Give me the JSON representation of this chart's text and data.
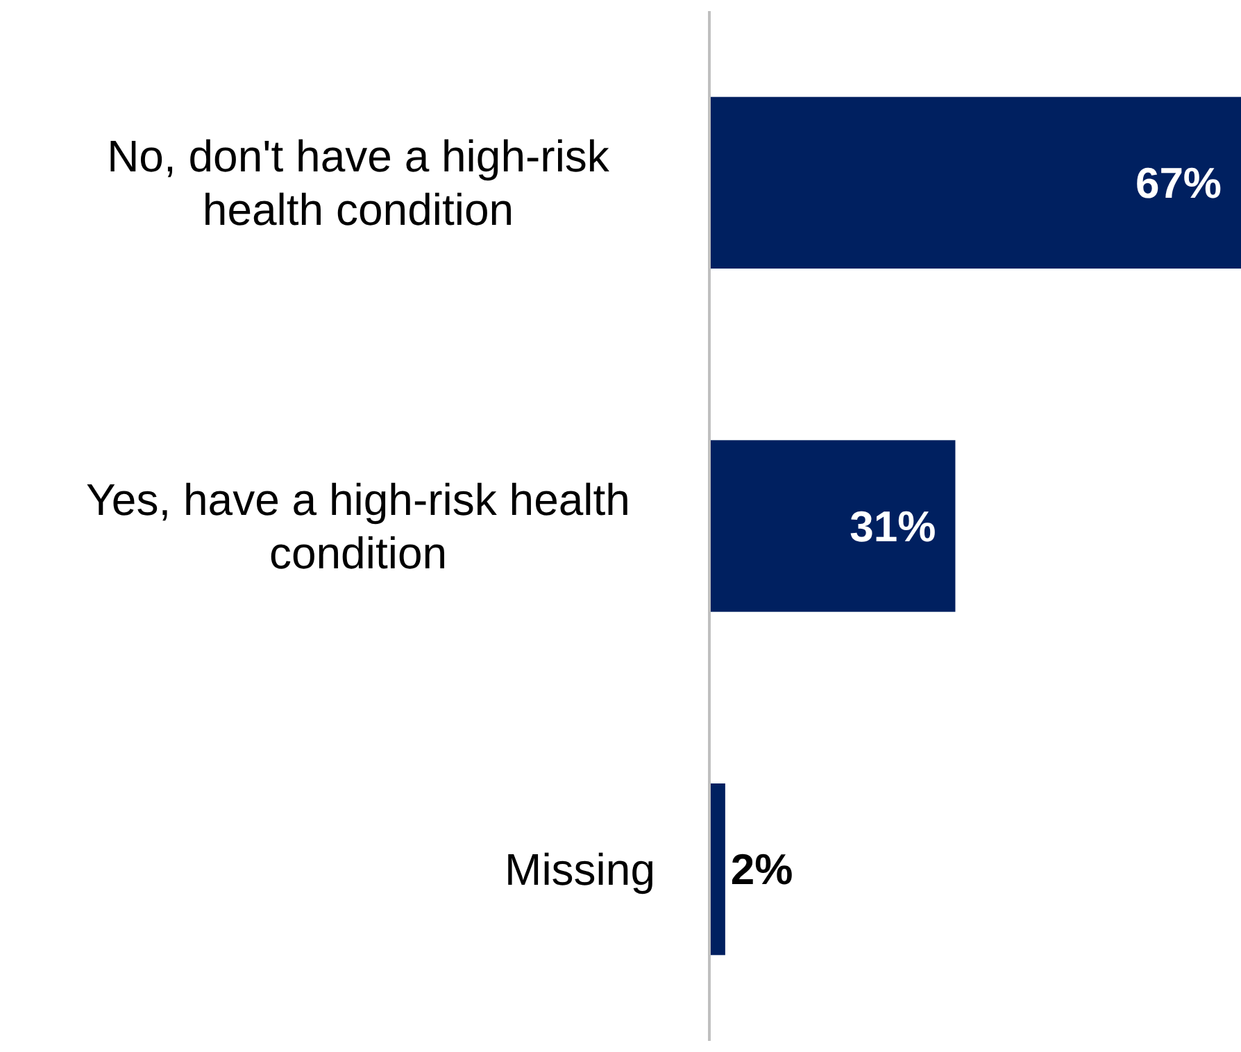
{
  "chart_data": {
    "type": "bar",
    "orientation": "horizontal",
    "categories": [
      "No, don't have a high-risk health condition",
      "Yes, have a high-risk health condition",
      "Missing"
    ],
    "values": [
      67,
      31,
      2
    ],
    "value_labels": [
      "67%",
      "31%",
      "2%"
    ],
    "color": "#002060"
  }
}
